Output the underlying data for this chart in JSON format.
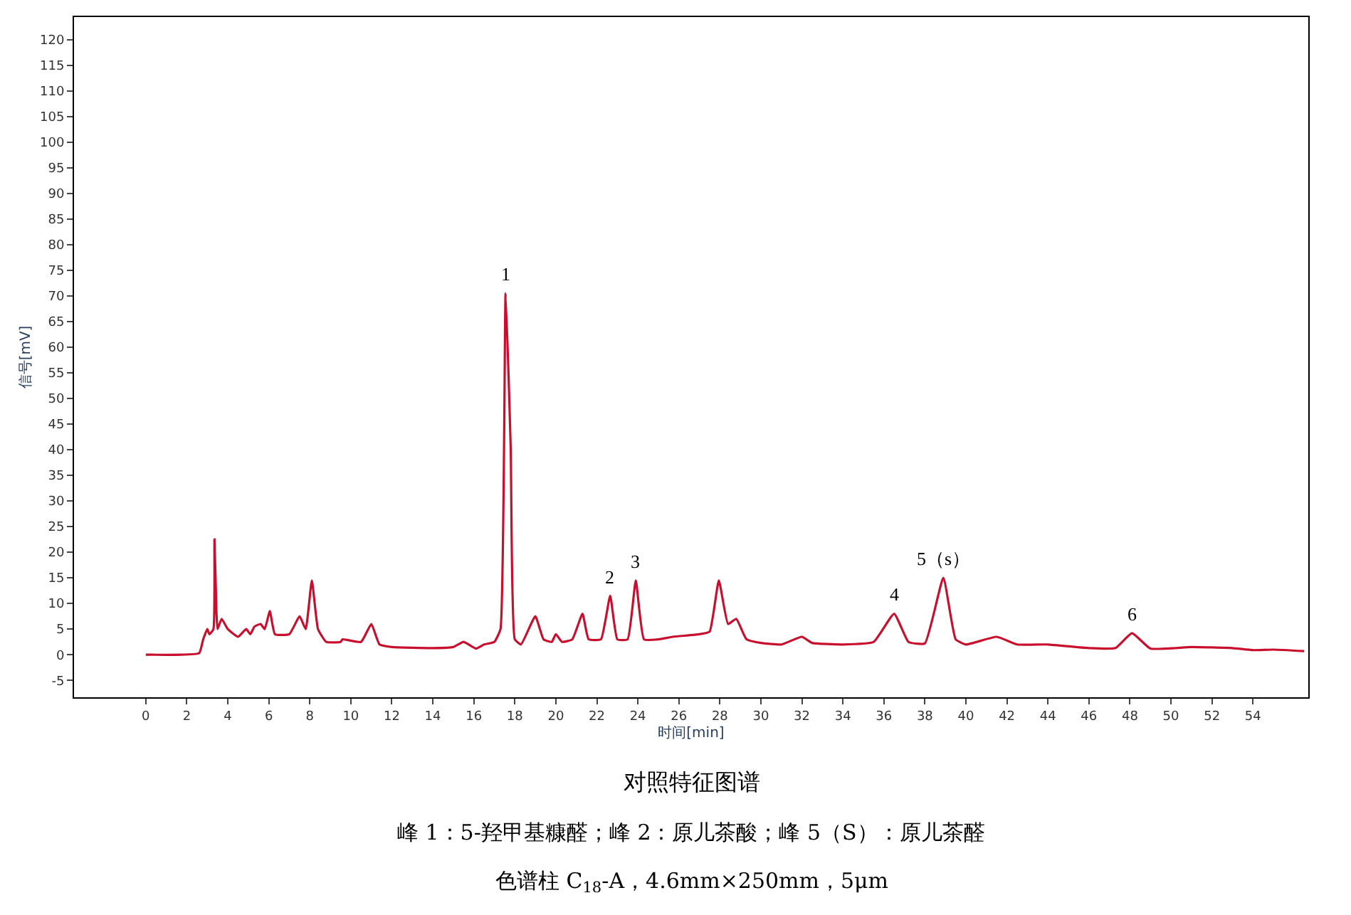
{
  "chart_data": {
    "type": "line",
    "title": "对照特征图谱",
    "xlabel": "时间[min]",
    "ylabel": "信号[mV]",
    "x": [
      0,
      0.3,
      2.6,
      2.8,
      3.0,
      3.1,
      3.3,
      3.35,
      3.45,
      3.5,
      3.7,
      4.0,
      4.5,
      4.9,
      5.1,
      5.3,
      5.6,
      5.8,
      6.05,
      6.3,
      7.0,
      7.5,
      7.8,
      8.1,
      8.4,
      8.8,
      9.5,
      9.6,
      10.5,
      11.0,
      11.4,
      12,
      14,
      15.0,
      15.5,
      16.1,
      16.5,
      17.0,
      17.3,
      17.55,
      17.8,
      18.0,
      18.3,
      19.0,
      19.4,
      19.8,
      20.0,
      20.3,
      20.8,
      21.3,
      21.6,
      22.2,
      22.65,
      23.0,
      23.5,
      23.9,
      24.3,
      25,
      25.7,
      27,
      27.5,
      27.95,
      28.4,
      28.8,
      29.3,
      30,
      31,
      32,
      32.5,
      34,
      35.5,
      36.5,
      37.2,
      38,
      38.9,
      39.5,
      40,
      41.5,
      42.5,
      44,
      46,
      47.3,
      48.1,
      49,
      51,
      53,
      54,
      55,
      56.5
    ],
    "series": [
      {
        "color": "#c8102e",
        "values": [
          0,
          0,
          0.3,
          3,
          5,
          4,
          5,
          22.5,
          8,
          5,
          7,
          5,
          3.5,
          5,
          4,
          5.5,
          6,
          5,
          8.5,
          4,
          4,
          7.5,
          5,
          14.5,
          5,
          2.5,
          2.5,
          3,
          2.5,
          6,
          2,
          1.5,
          1.3,
          1.5,
          2.5,
          1.2,
          2,
          2.5,
          5,
          70.5,
          40,
          3,
          2,
          7.5,
          3,
          2.5,
          4,
          2.5,
          3,
          8,
          3,
          3,
          11.5,
          3,
          3,
          14.5,
          3,
          3,
          3.5,
          4,
          4.5,
          14.5,
          6,
          7,
          3,
          2.3,
          2,
          3.5,
          2.3,
          2,
          2.5,
          8,
          2.5,
          2.2,
          15,
          3,
          2,
          3.5,
          2,
          2,
          1.3,
          1.3,
          4.2,
          1.2,
          1.5,
          1.3,
          0.9,
          1,
          0.7
        ]
      }
    ],
    "xlim": [
      -3.5,
      56.7
    ],
    "ylim": [
      -8.3,
      124.4
    ],
    "xticks": [
      0,
      2,
      4,
      6,
      8,
      10,
      12,
      14,
      16,
      18,
      20,
      22,
      24,
      26,
      28,
      30,
      32,
      34,
      36,
      38,
      40,
      42,
      44,
      46,
      48,
      50,
      52,
      54
    ],
    "yticks": [
      -5,
      0,
      5,
      10,
      15,
      20,
      25,
      30,
      35,
      40,
      45,
      50,
      55,
      60,
      65,
      70,
      75,
      80,
      85,
      90,
      95,
      100,
      105,
      110,
      115,
      120
    ],
    "marker": "none",
    "line_style": "solid",
    "annotations": [
      {
        "text": "1",
        "x": 17.55,
        "y": 70.5
      },
      {
        "text": "2",
        "x": 22.65,
        "y": 11.5
      },
      {
        "text": "3",
        "x": 23.9,
        "y": 14.5
      },
      {
        "text": "4",
        "x": 36.5,
        "y": 8
      },
      {
        "text": "5（s）",
        "x": 38.9,
        "y": 15
      },
      {
        "text": "6",
        "x": 48.1,
        "y": 4.2
      },
      "峰 1：5-羟甲基糠醛；峰 2：原儿茶酸；峰 5（S）：原儿茶醛",
      "色谱柱 C$_{18}$-A，4.6mm×250mm，5μm"
    ]
  }
}
